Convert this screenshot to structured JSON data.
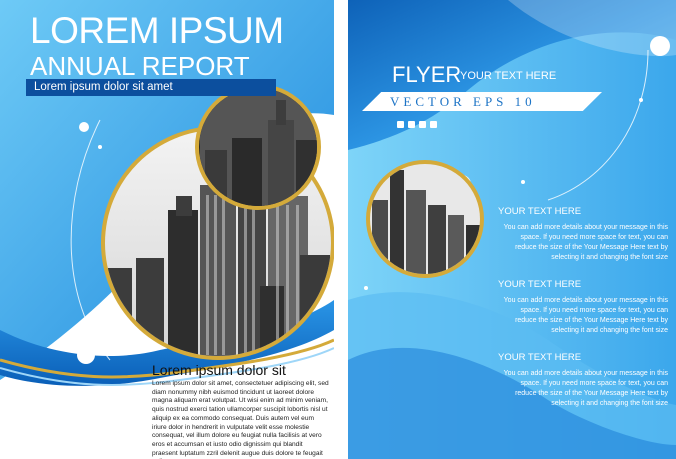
{
  "left_page": {
    "title_line1": "LOREM IPSUM",
    "title_line2": "ANNUAL REPORT",
    "subtitle": "Lorem ipsum dolor sit amet",
    "section_heading": "Lorem ipsum dolor sit",
    "body_text": "Lorem ipsum dolor sit amet, consectetuer adipiscing elit, sed diam nonummy nibh euismod tincidunt ut laoreet dolore magna aliquam erat volutpat. Ut wisi enim ad minim veniam, quis nostrud exerci tation ullamcorper suscipit lobortis nisl ut aliquip ex ea commodo consequat. Duis autem vel eum iriure dolor in hendrerit in vulputate velit esse molestie consequat, vel illum dolore eu feugiat nulla facilisis at vero eros et accumsan et iusto odio dignissim qui blandit praesent luptatum zzril delenit augue duis dolore te feugait nulla"
  },
  "right_page": {
    "flyer_title": "FLYER",
    "flyer_subtitle": "YOUR TEXT HERE",
    "vector_banner": "VECTOR EPS 10",
    "sections": [
      {
        "heading": "YOUR TEXT HERE",
        "body": "You can add more details about your message in this space. If you need more space for text, you can reduce the size of the Your Message Here text by selecting it and changing the font size"
      },
      {
        "heading": "YOUR TEXT HERE",
        "body": "You can add more details about your message in this space. If you need more space for text, you can reduce the size of the Your Message Here text by selecting it and changing the font size"
      },
      {
        "heading": "YOUR TEXT HERE",
        "body": "You can add more details about your message in this space. If you need more space for text, you can reduce the size of the Your Message Here text by selecting it and changing the font size"
      }
    ]
  },
  "colors": {
    "primary_blue": "#1f8ee0",
    "light_blue": "#5ec0f4",
    "dark_blue": "#0c4f9e",
    "gold": "#d4aa3a"
  },
  "icons": [
    "city-skyline-image",
    "decorative-circle",
    "social-square-icon"
  ]
}
